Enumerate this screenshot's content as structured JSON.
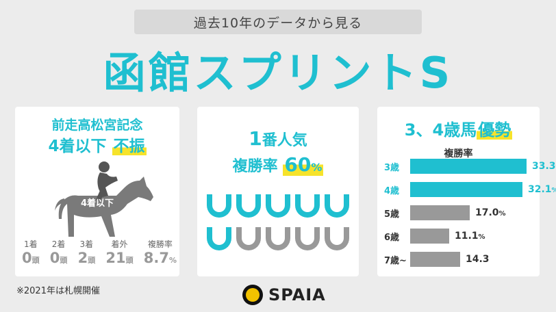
{
  "header": {
    "subtitle": "過去10年のデータから見る",
    "title": "函館スプリントS"
  },
  "card1": {
    "line1": "前走高松宮記念",
    "line2_prefix": "4着以下",
    "line2_highlight": "不振",
    "horse_label": "4着以下",
    "stats": [
      {
        "label": "1着",
        "value": "0",
        "unit": "頭"
      },
      {
        "label": "2着",
        "value": "0",
        "unit": "頭"
      },
      {
        "label": "3着",
        "value": "2",
        "unit": "頭"
      },
      {
        "label": "着外",
        "value": "21",
        "unit": "頭"
      },
      {
        "label": "複勝率",
        "value": "8.7",
        "unit": "%"
      }
    ]
  },
  "card2": {
    "line1_number": "1",
    "line1_text": "番人気",
    "line2_text": "複勝率",
    "line2_value": "60",
    "line2_unit": "%",
    "shoes_highlighted": 6,
    "shoes_total": 10
  },
  "card3": {
    "title_prefix": "3、4歳馬",
    "title_highlight": "優勢",
    "subtitle": "複勝率",
    "colors": {
      "highlight": "#1fbfd0",
      "normal": "#999999"
    },
    "bars": [
      {
        "label": "3歳",
        "value": 33.3,
        "display": "33.3",
        "unit": "%",
        "highlight": true
      },
      {
        "label": "4歳",
        "value": 32.1,
        "display": "32.1",
        "unit": "%",
        "highlight": true
      },
      {
        "label": "5歳",
        "value": 17.0,
        "display": "17.0",
        "unit": "%",
        "highlight": false
      },
      {
        "label": "6歳",
        "value": 11.1,
        "display": "11.1",
        "unit": "%",
        "highlight": false
      },
      {
        "label": "7歳~",
        "value": 14.3,
        "display": "14.3",
        "unit": "",
        "highlight": false
      }
    ]
  },
  "footer": {
    "note": "※2021年は札幌開催",
    "logo_text": "SPAIA"
  }
}
